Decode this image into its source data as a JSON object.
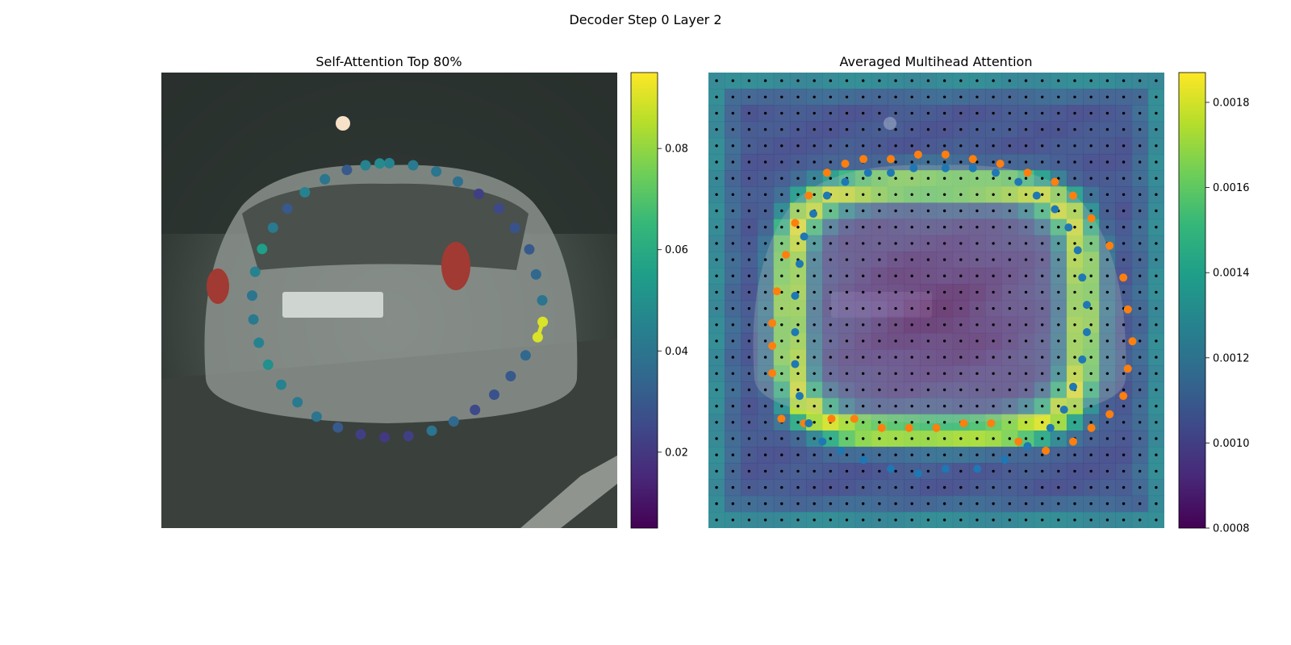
{
  "figure": {
    "suptitle": "Decoder Step 0 Layer 2"
  },
  "colors": {
    "viridis": [
      "#440154",
      "#482878",
      "#3e4989",
      "#31688e",
      "#26828e",
      "#1f9e89",
      "#35b779",
      "#6ece58",
      "#b5de2b",
      "#fde725"
    ],
    "contour_orange": "#ff7f0e",
    "contour_blue": "#1f77b4",
    "grid_dot": "#000000",
    "photo_tint": "#2f3a35"
  },
  "chart_data": [
    {
      "type": "scatter",
      "title": "Self-Attention Top 80%",
      "background": "street-photo-car-rear",
      "colorbar": {
        "min": 0.005,
        "max": 0.095,
        "ticks": [
          "0.02",
          "0.04",
          "0.06",
          "0.08"
        ],
        "tick_values": [
          0.02,
          0.04,
          0.06,
          0.08
        ]
      },
      "center": [
        0.5,
        0.5
      ],
      "points": [
        {
          "angle": -90,
          "r": 0.7,
          "v": 0.045
        },
        {
          "angle": -80,
          "r": 0.7,
          "v": 0.042
        },
        {
          "angle": -70,
          "r": 0.7,
          "v": 0.04
        },
        {
          "angle": -60,
          "r": 0.7,
          "v": 0.038
        },
        {
          "angle": -50,
          "r": 0.71,
          "v": 0.022
        },
        {
          "angle": -40,
          "r": 0.73,
          "v": 0.025
        },
        {
          "angle": -30,
          "r": 0.74,
          "v": 0.028
        },
        {
          "angle": -20,
          "r": 0.76,
          "v": 0.03
        },
        {
          "angle": -10,
          "r": 0.76,
          "v": 0.035
        },
        {
          "angle": 0,
          "r": 0.78,
          "v": 0.04
        },
        {
          "angle": 8,
          "r": 0.79,
          "v": 0.09
        },
        {
          "angle": 14,
          "r": 0.78,
          "v": 0.09
        },
        {
          "angle": 22,
          "r": 0.75,
          "v": 0.035
        },
        {
          "angle": 32,
          "r": 0.73,
          "v": 0.03
        },
        {
          "angle": 42,
          "r": 0.72,
          "v": 0.028
        },
        {
          "angle": 52,
          "r": 0.71,
          "v": 0.025
        },
        {
          "angle": 62,
          "r": 0.7,
          "v": 0.035
        },
        {
          "angle": 72,
          "r": 0.7,
          "v": 0.04
        },
        {
          "angle": 82,
          "r": 0.7,
          "v": 0.022
        },
        {
          "angle": 92,
          "r": 0.7,
          "v": 0.02
        },
        {
          "angle": 102,
          "r": 0.7,
          "v": 0.022
        },
        {
          "angle": 112,
          "r": 0.7,
          "v": 0.03
        },
        {
          "angle": 122,
          "r": 0.7,
          "v": 0.04
        },
        {
          "angle": 132,
          "r": 0.7,
          "v": 0.042
        },
        {
          "angle": 142,
          "r": 0.7,
          "v": 0.045
        },
        {
          "angle": 152,
          "r": 0.7,
          "v": 0.05
        },
        {
          "angle": 162,
          "r": 0.7,
          "v": 0.045
        },
        {
          "angle": 172,
          "r": 0.7,
          "v": 0.042
        },
        {
          "angle": 182,
          "r": 0.7,
          "v": 0.04
        },
        {
          "angle": 192,
          "r": 0.7,
          "v": 0.045
        },
        {
          "angle": 202,
          "r": 0.7,
          "v": 0.055
        },
        {
          "angle": 212,
          "r": 0.7,
          "v": 0.042
        },
        {
          "angle": 222,
          "r": 0.7,
          "v": 0.03
        },
        {
          "angle": 232,
          "r": 0.7,
          "v": 0.045
        },
        {
          "angle": 242,
          "r": 0.7,
          "v": 0.04
        },
        {
          "angle": 252,
          "r": 0.7,
          "v": 0.03
        },
        {
          "angle": 260,
          "r": 0.7,
          "v": 0.045
        },
        {
          "angle": 266,
          "r": 0.7,
          "v": 0.048
        }
      ],
      "highlight_segment": [
        10,
        11
      ]
    },
    {
      "type": "heatmap",
      "title": "Averaged Multihead Attention",
      "background": "street-photo-car-rear",
      "grid": {
        "rows": 28,
        "cols": 28
      },
      "colorbar": {
        "min": 0.0008,
        "max": 0.00187,
        "ticks": [
          "0.0008",
          "0.0010",
          "0.0012",
          "0.0014",
          "0.0016",
          "0.0018"
        ],
        "tick_values": [
          0.0008,
          0.001,
          0.0012,
          0.0014,
          0.0016,
          0.0018
        ]
      },
      "field": {
        "base": 0.00105,
        "ring_peak": 0.00182,
        "center": 0.00085,
        "edge": 0.00135
      },
      "orange_contour": [
        [
          0.14,
          0.55
        ],
        [
          0.15,
          0.48
        ],
        [
          0.17,
          0.4
        ],
        [
          0.19,
          0.33
        ],
        [
          0.22,
          0.27
        ],
        [
          0.26,
          0.22
        ],
        [
          0.3,
          0.2
        ],
        [
          0.34,
          0.19
        ],
        [
          0.4,
          0.19
        ],
        [
          0.46,
          0.18
        ],
        [
          0.52,
          0.18
        ],
        [
          0.58,
          0.19
        ],
        [
          0.64,
          0.2
        ],
        [
          0.7,
          0.22
        ],
        [
          0.76,
          0.24
        ],
        [
          0.8,
          0.27
        ],
        [
          0.84,
          0.32
        ],
        [
          0.88,
          0.38
        ],
        [
          0.91,
          0.45
        ],
        [
          0.92,
          0.52
        ],
        [
          0.93,
          0.59
        ],
        [
          0.92,
          0.65
        ],
        [
          0.91,
          0.71
        ],
        [
          0.88,
          0.75
        ],
        [
          0.84,
          0.78
        ],
        [
          0.8,
          0.81
        ],
        [
          0.74,
          0.83
        ],
        [
          0.68,
          0.81
        ],
        [
          0.62,
          0.77
        ],
        [
          0.56,
          0.77
        ],
        [
          0.5,
          0.78
        ],
        [
          0.44,
          0.78
        ],
        [
          0.38,
          0.78
        ],
        [
          0.32,
          0.76
        ],
        [
          0.27,
          0.76
        ],
        [
          0.21,
          0.77
        ],
        [
          0.16,
          0.76
        ],
        [
          0.14,
          0.66
        ],
        [
          0.14,
          0.6
        ]
      ],
      "blue_contour": [
        [
          0.19,
          0.57
        ],
        [
          0.19,
          0.49
        ],
        [
          0.2,
          0.42
        ],
        [
          0.21,
          0.36
        ],
        [
          0.23,
          0.31
        ],
        [
          0.26,
          0.27
        ],
        [
          0.3,
          0.24
        ],
        [
          0.35,
          0.22
        ],
        [
          0.4,
          0.22
        ],
        [
          0.45,
          0.21
        ],
        [
          0.52,
          0.21
        ],
        [
          0.58,
          0.21
        ],
        [
          0.63,
          0.22
        ],
        [
          0.68,
          0.24
        ],
        [
          0.72,
          0.27
        ],
        [
          0.76,
          0.3
        ],
        [
          0.79,
          0.34
        ],
        [
          0.81,
          0.39
        ],
        [
          0.82,
          0.45
        ],
        [
          0.83,
          0.51
        ],
        [
          0.83,
          0.57
        ],
        [
          0.82,
          0.63
        ],
        [
          0.8,
          0.69
        ],
        [
          0.78,
          0.74
        ],
        [
          0.75,
          0.78
        ],
        [
          0.7,
          0.82
        ],
        [
          0.65,
          0.85
        ],
        [
          0.59,
          0.87
        ],
        [
          0.52,
          0.87
        ],
        [
          0.46,
          0.88
        ],
        [
          0.4,
          0.87
        ],
        [
          0.34,
          0.85
        ],
        [
          0.29,
          0.83
        ],
        [
          0.25,
          0.81
        ],
        [
          0.22,
          0.77
        ],
        [
          0.2,
          0.71
        ],
        [
          0.19,
          0.64
        ]
      ]
    }
  ]
}
